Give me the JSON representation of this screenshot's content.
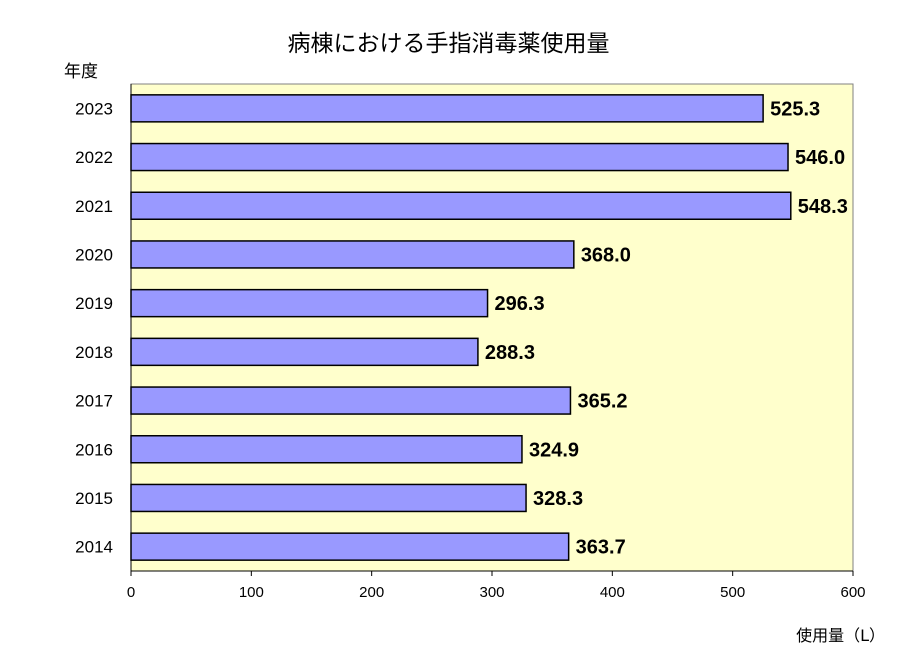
{
  "chart_data": {
    "type": "bar",
    "orientation": "horizontal",
    "title": "病棟における手指消毒薬使用量",
    "ylabel": "年度",
    "xlabel": "使用量（L）",
    "categories": [
      "2023",
      "2022",
      "2021",
      "2020",
      "2019",
      "2018",
      "2017",
      "2016",
      "2015",
      "2014"
    ],
    "values": [
      525.3,
      546.0,
      548.3,
      368.0,
      296.3,
      288.3,
      365.2,
      324.9,
      328.3,
      363.7
    ],
    "value_labels": [
      "525.3",
      "546.0",
      "548.3",
      "368.0",
      "296.3",
      "288.3",
      "365.2",
      "324.9",
      "328.3",
      "363.7"
    ],
    "xlim": [
      0,
      600
    ],
    "xticks": [
      0,
      100,
      200,
      300,
      400,
      500,
      600
    ],
    "grid": false,
    "colors": {
      "bar": "#9999ff",
      "plot_background": "#ffffcc",
      "bar_border": "#000000"
    }
  }
}
